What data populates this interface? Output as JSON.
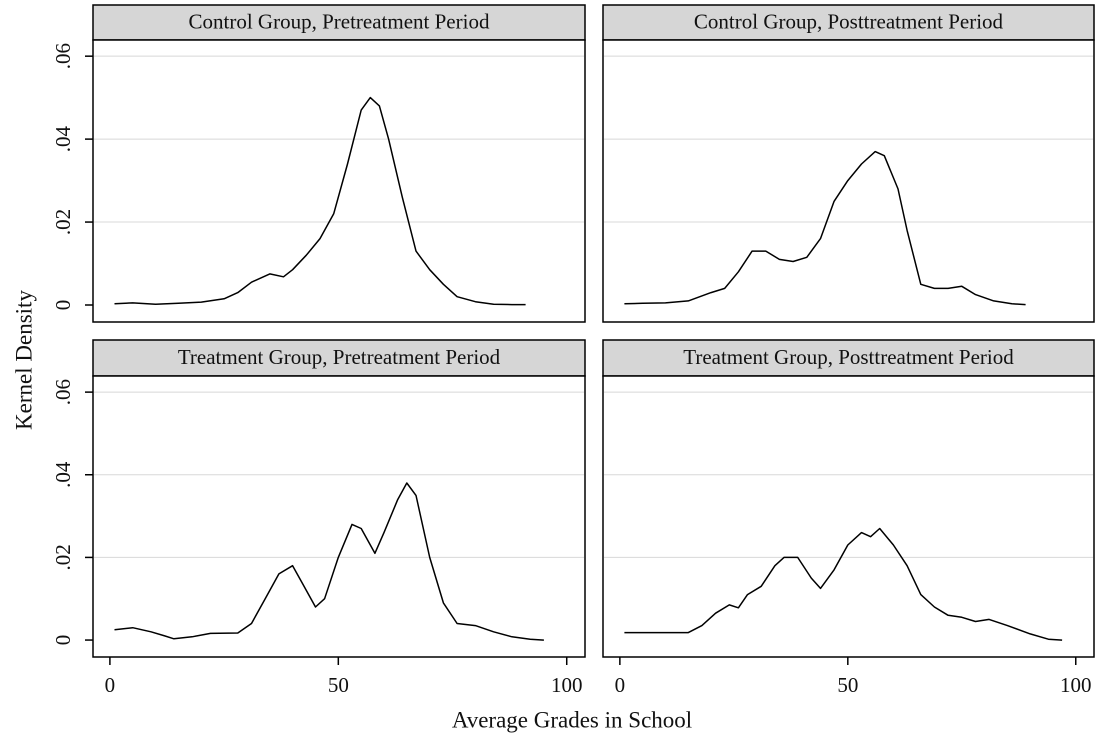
{
  "ylabel": "Kernel Density",
  "xlabel": "Average Grades in School",
  "chart_data": [
    {
      "type": "line",
      "title": "Control Group, Pretreatment Period",
      "color": "#000000",
      "grid": true,
      "xlim": [
        -3.7,
        104
      ],
      "ylim": [
        -0.0041,
        0.0639
      ],
      "yticks": [
        0,
        {
          "value": 0.02,
          "label": ".02"
        },
        {
          "value": 0.04,
          "label": ".04"
        },
        {
          "value": 0.06,
          "label": ".06"
        }
      ],
      "x": [
        1,
        5,
        10,
        15,
        20,
        25,
        28,
        31,
        35,
        38,
        40,
        43,
        46,
        49,
        52,
        55,
        57,
        59,
        61,
        64,
        67,
        70,
        73,
        76,
        80,
        84,
        88,
        91
      ],
      "values": [
        0.0003,
        0.0005,
        0.0002,
        0.0004,
        0.0007,
        0.0015,
        0.003,
        0.0055,
        0.0075,
        0.0068,
        0.0085,
        0.012,
        0.016,
        0.022,
        0.034,
        0.047,
        0.05,
        0.048,
        0.04,
        0.026,
        0.013,
        0.0085,
        0.005,
        0.002,
        0.0008,
        0.0002,
        0.0001,
        0.0001
      ]
    },
    {
      "type": "line",
      "title": "Control Group, Posttreatment Period",
      "color": "#000000",
      "grid": true,
      "xlim": [
        -3.7,
        104
      ],
      "ylim": [
        -0.0041,
        0.0639
      ],
      "x": [
        1,
        5,
        10,
        15,
        20,
        23,
        26,
        29,
        32,
        35,
        38,
        41,
        44,
        47,
        50,
        53,
        56,
        58,
        61,
        63,
        66,
        69,
        72,
        75,
        78,
        82,
        86,
        89
      ],
      "values": [
        0.0003,
        0.0004,
        0.0005,
        0.001,
        0.003,
        0.004,
        0.008,
        0.013,
        0.013,
        0.011,
        0.0105,
        0.0115,
        0.016,
        0.025,
        0.03,
        0.034,
        0.037,
        0.036,
        0.028,
        0.018,
        0.005,
        0.004,
        0.004,
        0.0045,
        0.0025,
        0.001,
        0.0003,
        0.0001
      ]
    },
    {
      "type": "line",
      "title": "Treatment Group, Pretreatment Period",
      "color": "#000000",
      "grid": true,
      "xlim": [
        -3.7,
        104
      ],
      "ylim": [
        -0.0041,
        0.0639
      ],
      "xticks": [
        0,
        50,
        100
      ],
      "yticks": [
        0,
        {
          "value": 0.02,
          "label": ".02"
        },
        {
          "value": 0.04,
          "label": ".04"
        },
        {
          "value": 0.06,
          "label": ".06"
        }
      ],
      "x": [
        1,
        5,
        9,
        12,
        14,
        18,
        22,
        28,
        31,
        34,
        37,
        40,
        42,
        45,
        47,
        50,
        53,
        55,
        58,
        60,
        63,
        65,
        67,
        70,
        73,
        76,
        80,
        84,
        88,
        92,
        95
      ],
      "values": [
        0.0025,
        0.003,
        0.002,
        0.001,
        0.0003,
        0.0008,
        0.0016,
        0.0017,
        0.004,
        0.01,
        0.016,
        0.018,
        0.014,
        0.008,
        0.01,
        0.02,
        0.028,
        0.027,
        0.021,
        0.026,
        0.034,
        0.038,
        0.035,
        0.02,
        0.009,
        0.004,
        0.0035,
        0.002,
        0.0008,
        0.0002,
        0
      ]
    },
    {
      "type": "line",
      "title": "Treatment Group, Posttreatment Period",
      "color": "#000000",
      "grid": true,
      "xlim": [
        -3.7,
        104
      ],
      "ylim": [
        -0.0041,
        0.0639
      ],
      "xticks": [
        0,
        50,
        100
      ],
      "x": [
        1,
        8,
        15,
        18,
        21,
        24,
        26,
        28,
        31,
        34,
        36,
        39,
        42,
        44,
        47,
        50,
        53,
        55,
        57,
        60,
        63,
        66,
        69,
        72,
        75,
        78,
        81,
        85,
        90,
        94,
        97
      ],
      "values": [
        0.0018,
        0.0018,
        0.0018,
        0.0035,
        0.0065,
        0.0085,
        0.0078,
        0.011,
        0.013,
        0.018,
        0.02,
        0.02,
        0.015,
        0.0125,
        0.017,
        0.023,
        0.026,
        0.025,
        0.027,
        0.023,
        0.018,
        0.011,
        0.008,
        0.006,
        0.0055,
        0.0045,
        0.005,
        0.0035,
        0.0015,
        0.0002,
        0
      ]
    }
  ]
}
